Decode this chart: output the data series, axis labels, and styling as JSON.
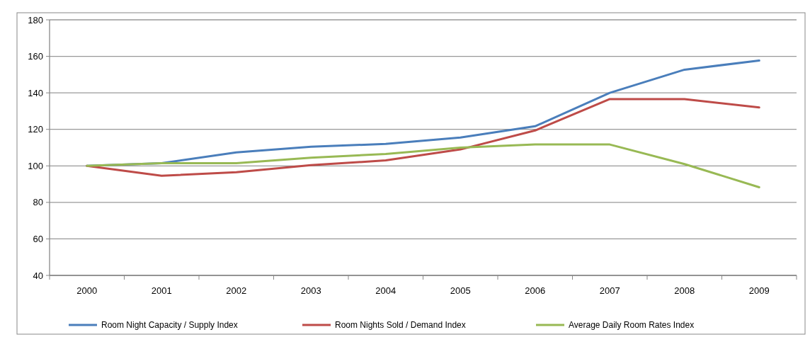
{
  "chart_data": {
    "type": "line",
    "categories": [
      "2000",
      "2001",
      "2002",
      "2003",
      "2004",
      "2005",
      "2006",
      "2007",
      "2008",
      "2009"
    ],
    "series": [
      {
        "name": "Room Night Capacity / Supply Index",
        "color": "#4a7ebb",
        "values": [
          100,
          101.5,
          107.4,
          110.5,
          112,
          115.5,
          121.7,
          140,
          152.7,
          157.7
        ]
      },
      {
        "name": "Room Nights Sold / Demand Index",
        "color": "#be4b48",
        "values": [
          100,
          94.6,
          96.5,
          100.4,
          103,
          109,
          119.4,
          136.6,
          136.6,
          132
        ]
      },
      {
        "name": "Average Daily Room Rates Index",
        "color": "#98b954",
        "values": [
          100,
          101.5,
          101.5,
          104.5,
          106.5,
          110,
          111.7,
          111.7,
          101,
          88.3
        ]
      }
    ],
    "ylim": [
      40,
      180
    ],
    "yticks": [
      40,
      60,
      80,
      100,
      120,
      140,
      160,
      180
    ],
    "grid": "y",
    "legend": "bottom",
    "marker": "none",
    "line_style": "solid"
  }
}
